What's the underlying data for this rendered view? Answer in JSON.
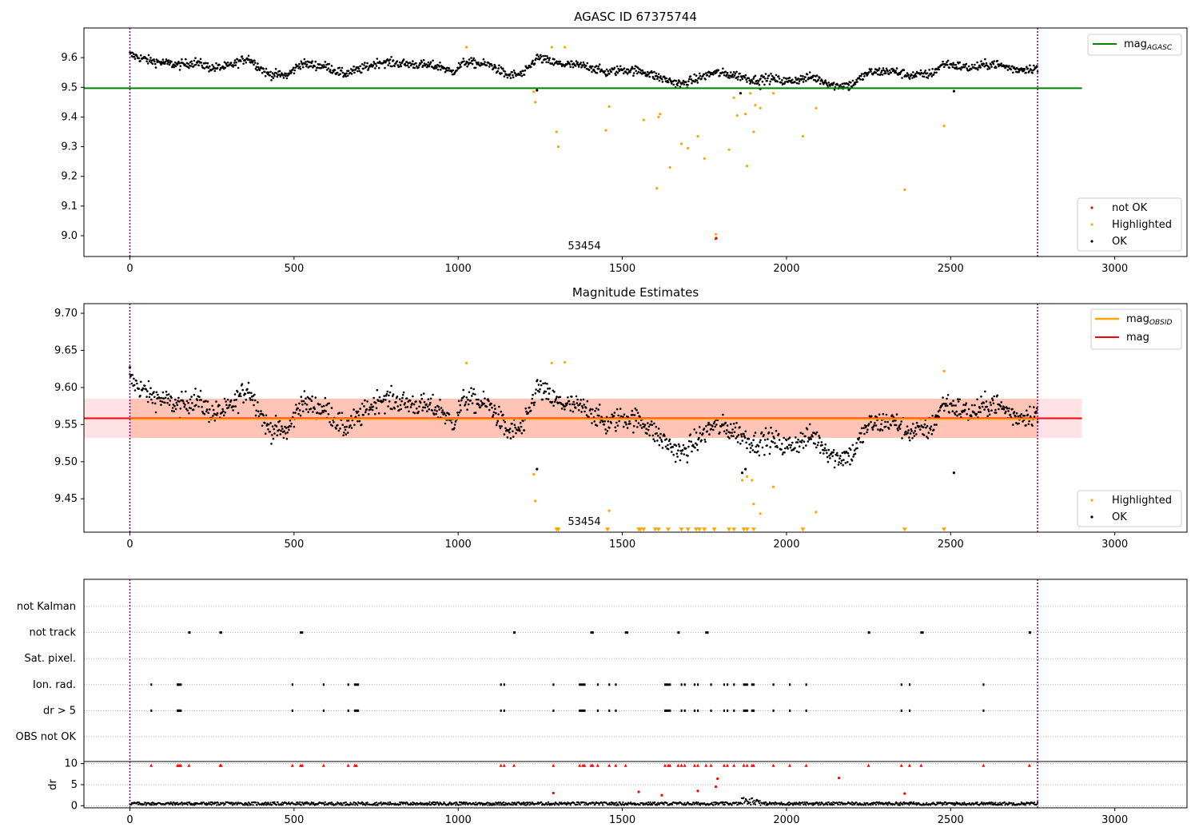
{
  "chart_data": [
    {
      "type": "scatter",
      "title": "AGASC ID 67375744",
      "xlim": [
        -140,
        3220
      ],
      "ylim": [
        8.93,
        9.7
      ],
      "xticks": [
        0,
        500,
        1000,
        1500,
        2000,
        2500,
        3000
      ],
      "yticks": [
        9.0,
        9.1,
        9.2,
        9.3,
        9.4,
        9.5,
        9.6
      ],
      "vlines": [
        0,
        2765
      ],
      "hline": {
        "name": "mag",
        "subscript": "AGASC",
        "y": 9.497,
        "x": [
          -140,
          2900
        ],
        "color": "#008000"
      },
      "annotation": {
        "text": "53454",
        "x": 1380,
        "y": 8.95
      },
      "legend_lines": [
        {
          "name": "mag",
          "subscript": "AGASC",
          "color": "#008000"
        }
      ],
      "legend_points": [
        {
          "name": "not OK",
          "color": "#ff0000"
        },
        {
          "name": "Highlighted",
          "color": "#ffa500"
        },
        {
          "name": "OK",
          "color": "#000000"
        }
      ],
      "series": [
        {
          "name": "OK",
          "color": "#000000",
          "kind": "band",
          "anchors": [
            [
              0,
              9.61
            ],
            [
              60,
              9.59
            ],
            [
              150,
              9.575
            ],
            [
              200,
              9.585
            ],
            [
              250,
              9.565
            ],
            [
              300,
              9.57
            ],
            [
              360,
              9.6
            ],
            [
              420,
              9.545
            ],
            [
              480,
              9.54
            ],
            [
              520,
              9.58
            ],
            [
              600,
              9.57
            ],
            [
              650,
              9.545
            ],
            [
              700,
              9.56
            ],
            [
              760,
              9.585
            ],
            [
              900,
              9.575
            ],
            [
              950,
              9.57
            ],
            [
              980,
              9.55
            ],
            [
              1020,
              9.585
            ],
            [
              1100,
              9.575
            ],
            [
              1150,
              9.54
            ],
            [
              1200,
              9.545
            ],
            [
              1240,
              9.6
            ],
            [
              1300,
              9.58
            ],
            [
              1400,
              9.57
            ],
            [
              1450,
              9.55
            ],
            [
              1500,
              9.56
            ],
            [
              1560,
              9.555
            ],
            [
              1620,
              9.53
            ],
            [
              1680,
              9.51
            ],
            [
              1730,
              9.53
            ],
            [
              1780,
              9.55
            ],
            [
              1850,
              9.54
            ],
            [
              1900,
              9.525
            ],
            [
              1950,
              9.53
            ],
            [
              2000,
              9.52
            ],
            [
              2080,
              9.535
            ],
            [
              2150,
              9.505
            ],
            [
              2200,
              9.51
            ],
            [
              2250,
              9.55
            ],
            [
              2320,
              9.555
            ],
            [
              2380,
              9.54
            ],
            [
              2440,
              9.545
            ],
            [
              2480,
              9.58
            ],
            [
              2560,
              9.565
            ],
            [
              2630,
              9.58
            ],
            [
              2700,
              9.56
            ],
            [
              2765,
              9.565
            ]
          ],
          "spread": 0.011,
          "count": 1400,
          "x_range": [
            0,
            2765
          ]
        },
        {
          "name": "OK outliers",
          "color": "#000000",
          "x": [
            1240,
            2510,
            1860,
            1920,
            2190
          ],
          "y": [
            9.49,
            9.487,
            9.48,
            9.495,
            9.492
          ]
        },
        {
          "name": "Highlighted",
          "color": "#ffa500",
          "x": [
            1025,
            1230,
            1235,
            1285,
            1300,
            1305,
            1325,
            1450,
            1460,
            1565,
            1605,
            1610,
            1615,
            1645,
            1680,
            1700,
            1730,
            1750,
            1785,
            1825,
            1840,
            1850,
            1875,
            1880,
            1890,
            1900,
            1905,
            1920,
            1960,
            2050,
            2090,
            2360,
            2480
          ],
          "y": [
            9.635,
            9.485,
            9.45,
            9.635,
            9.35,
            9.3,
            9.635,
            9.355,
            9.435,
            9.39,
            9.16,
            9.4,
            9.41,
            9.23,
            9.31,
            9.295,
            9.335,
            9.26,
            9.005,
            9.29,
            9.465,
            9.405,
            9.41,
            9.235,
            9.48,
            9.35,
            9.44,
            9.43,
            9.48,
            9.335,
            9.43,
            9.155,
            9.37
          ]
        },
        {
          "name": "not OK",
          "color": "#ff0000",
          "x": [
            1785,
            1786
          ],
          "y": [
            8.99,
            8.992
          ]
        }
      ]
    },
    {
      "type": "scatter",
      "title": "Magnitude Estimates",
      "xlim": [
        -140,
        3220
      ],
      "ylim": [
        9.405,
        9.713
      ],
      "xticks": [
        0,
        500,
        1000,
        1500,
        2000,
        2500,
        3000
      ],
      "yticks": [
        9.45,
        9.5,
        9.55,
        9.6,
        9.65,
        9.7
      ],
      "vlines": [
        0,
        2765
      ],
      "mag_line": {
        "name": "mag",
        "y": 9.5585,
        "x": [
          -140,
          2900
        ],
        "color": "#ff0000"
      },
      "mag_obsid": {
        "name": "mag",
        "subscript": "OBSID",
        "y": 9.5575,
        "x": [
          0,
          2765
        ],
        "color": "#ffa500"
      },
      "band_pink": {
        "y": [
          9.532,
          9.585
        ],
        "x": [
          -140,
          2900
        ],
        "color": "#ffb6c1"
      },
      "band_orange": {
        "y": [
          9.532,
          9.585
        ],
        "x": [
          0,
          2765
        ],
        "color": "#ffa07a"
      },
      "annotation": {
        "text": "53454",
        "x": 1380,
        "y": 9.413
      },
      "legend_lines": [
        {
          "name": "mag",
          "subscript": "OBSID",
          "color": "#ffa500"
        },
        {
          "name": "mag",
          "subscript": "",
          "color": "#ff0000"
        }
      ],
      "legend_points": [
        {
          "name": "Highlighted",
          "color": "#ffa500"
        },
        {
          "name": "OK",
          "color": "#000000"
        }
      ],
      "series": [
        {
          "name": "OK",
          "color": "#000000",
          "kind": "band",
          "anchors": [
            [
              0,
              9.61
            ],
            [
              60,
              9.59
            ],
            [
              150,
              9.575
            ],
            [
              200,
              9.585
            ],
            [
              250,
              9.565
            ],
            [
              300,
              9.57
            ],
            [
              360,
              9.6
            ],
            [
              420,
              9.545
            ],
            [
              480,
              9.54
            ],
            [
              520,
              9.58
            ],
            [
              600,
              9.57
            ],
            [
              650,
              9.545
            ],
            [
              700,
              9.56
            ],
            [
              760,
              9.585
            ],
            [
              900,
              9.575
            ],
            [
              950,
              9.57
            ],
            [
              980,
              9.55
            ],
            [
              1020,
              9.585
            ],
            [
              1100,
              9.575
            ],
            [
              1150,
              9.54
            ],
            [
              1200,
              9.545
            ],
            [
              1240,
              9.6
            ],
            [
              1300,
              9.58
            ],
            [
              1400,
              9.57
            ],
            [
              1450,
              9.55
            ],
            [
              1500,
              9.56
            ],
            [
              1560,
              9.555
            ],
            [
              1620,
              9.53
            ],
            [
              1680,
              9.51
            ],
            [
              1730,
              9.53
            ],
            [
              1780,
              9.55
            ],
            [
              1850,
              9.54
            ],
            [
              1900,
              9.525
            ],
            [
              1950,
              9.53
            ],
            [
              2000,
              9.52
            ],
            [
              2080,
              9.535
            ],
            [
              2150,
              9.505
            ],
            [
              2200,
              9.51
            ],
            [
              2250,
              9.55
            ],
            [
              2320,
              9.555
            ],
            [
              2380,
              9.54
            ],
            [
              2440,
              9.545
            ],
            [
              2480,
              9.58
            ],
            [
              2560,
              9.565
            ],
            [
              2630,
              9.58
            ],
            [
              2700,
              9.56
            ],
            [
              2765,
              9.565
            ]
          ],
          "spread": 0.011,
          "count": 1400,
          "x_range": [
            0,
            2765
          ]
        },
        {
          "name": "OK outliers",
          "color": "#000000",
          "x": [
            0,
            1240,
            2510,
            1865,
            1875
          ],
          "y": [
            9.627,
            9.49,
            9.485,
            9.485,
            9.49
          ]
        },
        {
          "name": "Highlighted",
          "color": "#ffa500",
          "x": [
            1025,
            1230,
            1235,
            1285,
            1325,
            1460,
            1865,
            1880,
            1895,
            1900,
            1920,
            1960,
            2090,
            2480
          ],
          "y": [
            9.633,
            9.483,
            9.447,
            9.633,
            9.634,
            9.434,
            9.475,
            9.48,
            9.475,
            9.443,
            9.43,
            9.466,
            9.432,
            9.622
          ]
        },
        {
          "name": "Highlighted (below axis)",
          "color": "#ffa500",
          "marker": "triangle-down",
          "x": [
            1300,
            1305,
            1455,
            1550,
            1555,
            1565,
            1600,
            1610,
            1640,
            1680,
            1700,
            1725,
            1735,
            1750,
            1780,
            1825,
            1840,
            1870,
            1880,
            1900,
            2050,
            2360,
            2480
          ],
          "y": [
            9.408,
            9.408,
            9.408,
            9.408,
            9.408,
            9.408,
            9.408,
            9.408,
            9.408,
            9.408,
            9.408,
            9.408,
            9.408,
            9.408,
            9.408,
            9.408,
            9.408,
            9.408,
            9.408,
            9.408,
            9.408,
            9.408,
            9.408
          ]
        }
      ]
    },
    {
      "type": "scatter",
      "title": "",
      "xlim": [
        -140,
        3220
      ],
      "categories": [
        "not Kalman",
        "not track",
        "Sat. pixel.",
        "Ion. rad.",
        "dr > 5",
        "OBS not OK"
      ],
      "vlines": [
        0,
        2765
      ],
      "series": [
        {
          "name": "not track",
          "color": "#000000",
          "x": [
            180,
            182,
            275,
            278,
            520,
            525,
            1170,
            1172,
            1405,
            1410,
            1510,
            1515,
            1670,
            1672,
            1755,
            1760,
            2250,
            2252,
            2410,
            2415,
            2740,
            2742
          ],
          "y": "not track"
        },
        {
          "name": "Ion. rad.",
          "color": "#000000",
          "x": [
            65,
            145,
            148,
            150,
            155,
            495,
            590,
            665,
            685,
            690,
            695,
            1130,
            1140,
            1290,
            1370,
            1375,
            1380,
            1385,
            1425,
            1460,
            1480,
            1630,
            1635,
            1640,
            1645,
            1680,
            1690,
            1720,
            1730,
            1770,
            1810,
            1820,
            1840,
            1870,
            1875,
            1880,
            1895,
            1900,
            1960,
            2010,
            2060,
            2350,
            2375,
            2600
          ],
          "y": "Ion. rad."
        },
        {
          "name": "dr > 5",
          "color": "#000000",
          "x": [
            65,
            145,
            148,
            150,
            155,
            495,
            590,
            665,
            685,
            690,
            695,
            1130,
            1140,
            1290,
            1370,
            1375,
            1380,
            1385,
            1425,
            1460,
            1480,
            1630,
            1635,
            1640,
            1645,
            1680,
            1690,
            1720,
            1730,
            1770,
            1810,
            1820,
            1840,
            1870,
            1875,
            1880,
            1895,
            1900,
            1960,
            2010,
            2060,
            2350,
            2375,
            2600
          ],
          "y": "dr > 5"
        }
      ]
    },
    {
      "type": "scatter",
      "title": "",
      "ylabel": "dr",
      "xlim": [
        -140,
        3220
      ],
      "ylim": [
        -0.5,
        10.5
      ],
      "xticks": [
        0,
        500,
        1000,
        1500,
        2000,
        2500,
        3000
      ],
      "yticks": [
        0,
        5,
        10
      ],
      "vlines": [
        0,
        2765
      ],
      "series": [
        {
          "name": "dr",
          "color": "#000000",
          "kind": "noise",
          "base": 0.5,
          "spread": 0.35,
          "count": 1400,
          "x_range": [
            0,
            2765
          ],
          "bump": {
            "x": [
              1860,
              1920
            ],
            "extra": 1.3
          }
        },
        {
          "name": "dr capped",
          "color": "#ff0000",
          "marker": "triangle-up",
          "x": [
            65,
            145,
            150,
            155,
            180,
            275,
            278,
            495,
            520,
            525,
            590,
            665,
            685,
            690,
            1130,
            1140,
            1170,
            1290,
            1370,
            1380,
            1385,
            1405,
            1410,
            1425,
            1460,
            1480,
            1510,
            1630,
            1640,
            1645,
            1670,
            1680,
            1690,
            1720,
            1730,
            1755,
            1770,
            1810,
            1820,
            1840,
            1870,
            1880,
            1895,
            1900,
            1960,
            2010,
            2060,
            2250,
            2350,
            2375,
            2410,
            2600,
            2740
          ],
          "y": [
            9.6,
            9.6,
            9.6,
            9.6,
            9.6,
            9.6,
            9.6,
            9.6,
            9.6,
            9.6,
            9.6,
            9.6,
            9.6,
            9.6,
            9.6,
            9.6,
            9.6,
            9.6,
            9.6,
            9.6,
            9.6,
            9.6,
            9.6,
            9.6,
            9.6,
            9.6,
            9.6,
            9.6,
            9.6,
            9.6,
            9.6,
            9.6,
            9.6,
            9.6,
            9.6,
            9.6,
            9.6,
            9.6,
            9.6,
            9.6,
            9.6,
            9.6,
            9.6,
            9.6,
            9.6,
            9.6,
            9.6,
            9.6,
            9.6,
            9.6,
            9.6,
            9.6,
            9.6
          ]
        },
        {
          "name": "dr red",
          "color": "#ff0000",
          "x": [
            1290,
            1550,
            1620,
            1730,
            1785,
            1790,
            2160,
            2360
          ],
          "y": [
            3.0,
            3.3,
            2.5,
            3.5,
            4.5,
            6.4,
            6.6,
            2.9
          ]
        }
      ]
    }
  ]
}
